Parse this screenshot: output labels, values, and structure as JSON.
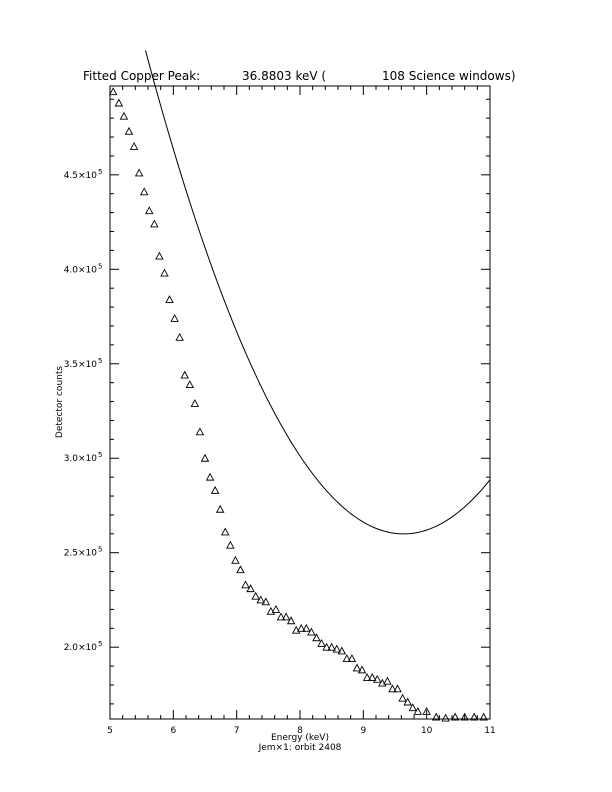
{
  "chart_data": {
    "type": "scatter",
    "title": {
      "prefix": "Fitted Copper Peak:",
      "value": "36.8803 keV (",
      "suffix": "108 Science windows)"
    },
    "xlabel": "Energy (keV)",
    "xlabel2": "Jem×1: orbit 2408",
    "ylabel": "Detector counts",
    "xlim": [
      5,
      11
    ],
    "ylim": [
      162000,
      497000
    ],
    "grid": false,
    "x_ticks": [
      5,
      6,
      7,
      8,
      9,
      10,
      11
    ],
    "x_tick_labels": [
      "5",
      "6",
      "7",
      "8",
      "9",
      "10",
      "11"
    ],
    "y_ticks": [
      200000,
      250000,
      300000,
      350000,
      400000,
      450000
    ],
    "y_tick_labels": [
      {
        "mantissa": "2.0×10",
        "exp": "5"
      },
      {
        "mantissa": "2.5×10",
        "exp": "5"
      },
      {
        "mantissa": "3.0×10",
        "exp": "5"
      },
      {
        "mantissa": "3.5×10",
        "exp": "5"
      },
      {
        "mantissa": "4.0×10",
        "exp": "5"
      },
      {
        "mantissa": "4.5×10",
        "exp": "5"
      }
    ],
    "series": [
      {
        "kind": "points",
        "marker": "triangle",
        "x": [
          5.05,
          5.14,
          5.22,
          5.3,
          5.38,
          5.46,
          5.54,
          5.62,
          5.7,
          5.78,
          5.86,
          5.94,
          6.02,
          6.1,
          6.18,
          6.26,
          6.34,
          6.42,
          6.5,
          6.58,
          6.66,
          6.74,
          6.82,
          6.9,
          6.98,
          7.06,
          7.14,
          7.22,
          7.3,
          7.38,
          7.46,
          7.54,
          7.62,
          7.7,
          7.78,
          7.86,
          7.94,
          8.02,
          8.1,
          8.18,
          8.26,
          8.34,
          8.42,
          8.5,
          8.58,
          8.66,
          8.74,
          8.82,
          8.9,
          8.98,
          9.06,
          9.14,
          9.22,
          9.3,
          9.38,
          9.46,
          9.54,
          9.62,
          9.7,
          9.78,
          9.86,
          10.0,
          10.15,
          10.3,
          10.45,
          10.6,
          10.75,
          10.9
        ],
        "y": [
          494000,
          488000,
          481000,
          473000,
          465000,
          451000,
          441000,
          431000,
          424000,
          407000,
          398000,
          384000,
          374000,
          364000,
          344000,
          339000,
          329000,
          314000,
          300000,
          290000,
          283000,
          273000,
          261000,
          254000,
          246000,
          241000,
          233000,
          231000,
          227000,
          225000,
          224000,
          219000,
          220000,
          216000,
          216000,
          214000,
          209000,
          210000,
          210000,
          208000,
          205000,
          202000,
          200000,
          200000,
          199000,
          198000,
          194000,
          194000,
          189000,
          188000,
          184000,
          184000,
          183000,
          181000,
          182000,
          178000,
          178000,
          173000,
          171000,
          168000,
          166000,
          166000,
          163000,
          162500,
          163000,
          163000,
          163000,
          163000
        ]
      },
      {
        "kind": "line",
        "fit": "quadratic",
        "x_range": [
          5.56,
          11.0
        ],
        "coefficients": [
          1690000,
          -296800,
          15400
        ]
      }
    ]
  }
}
